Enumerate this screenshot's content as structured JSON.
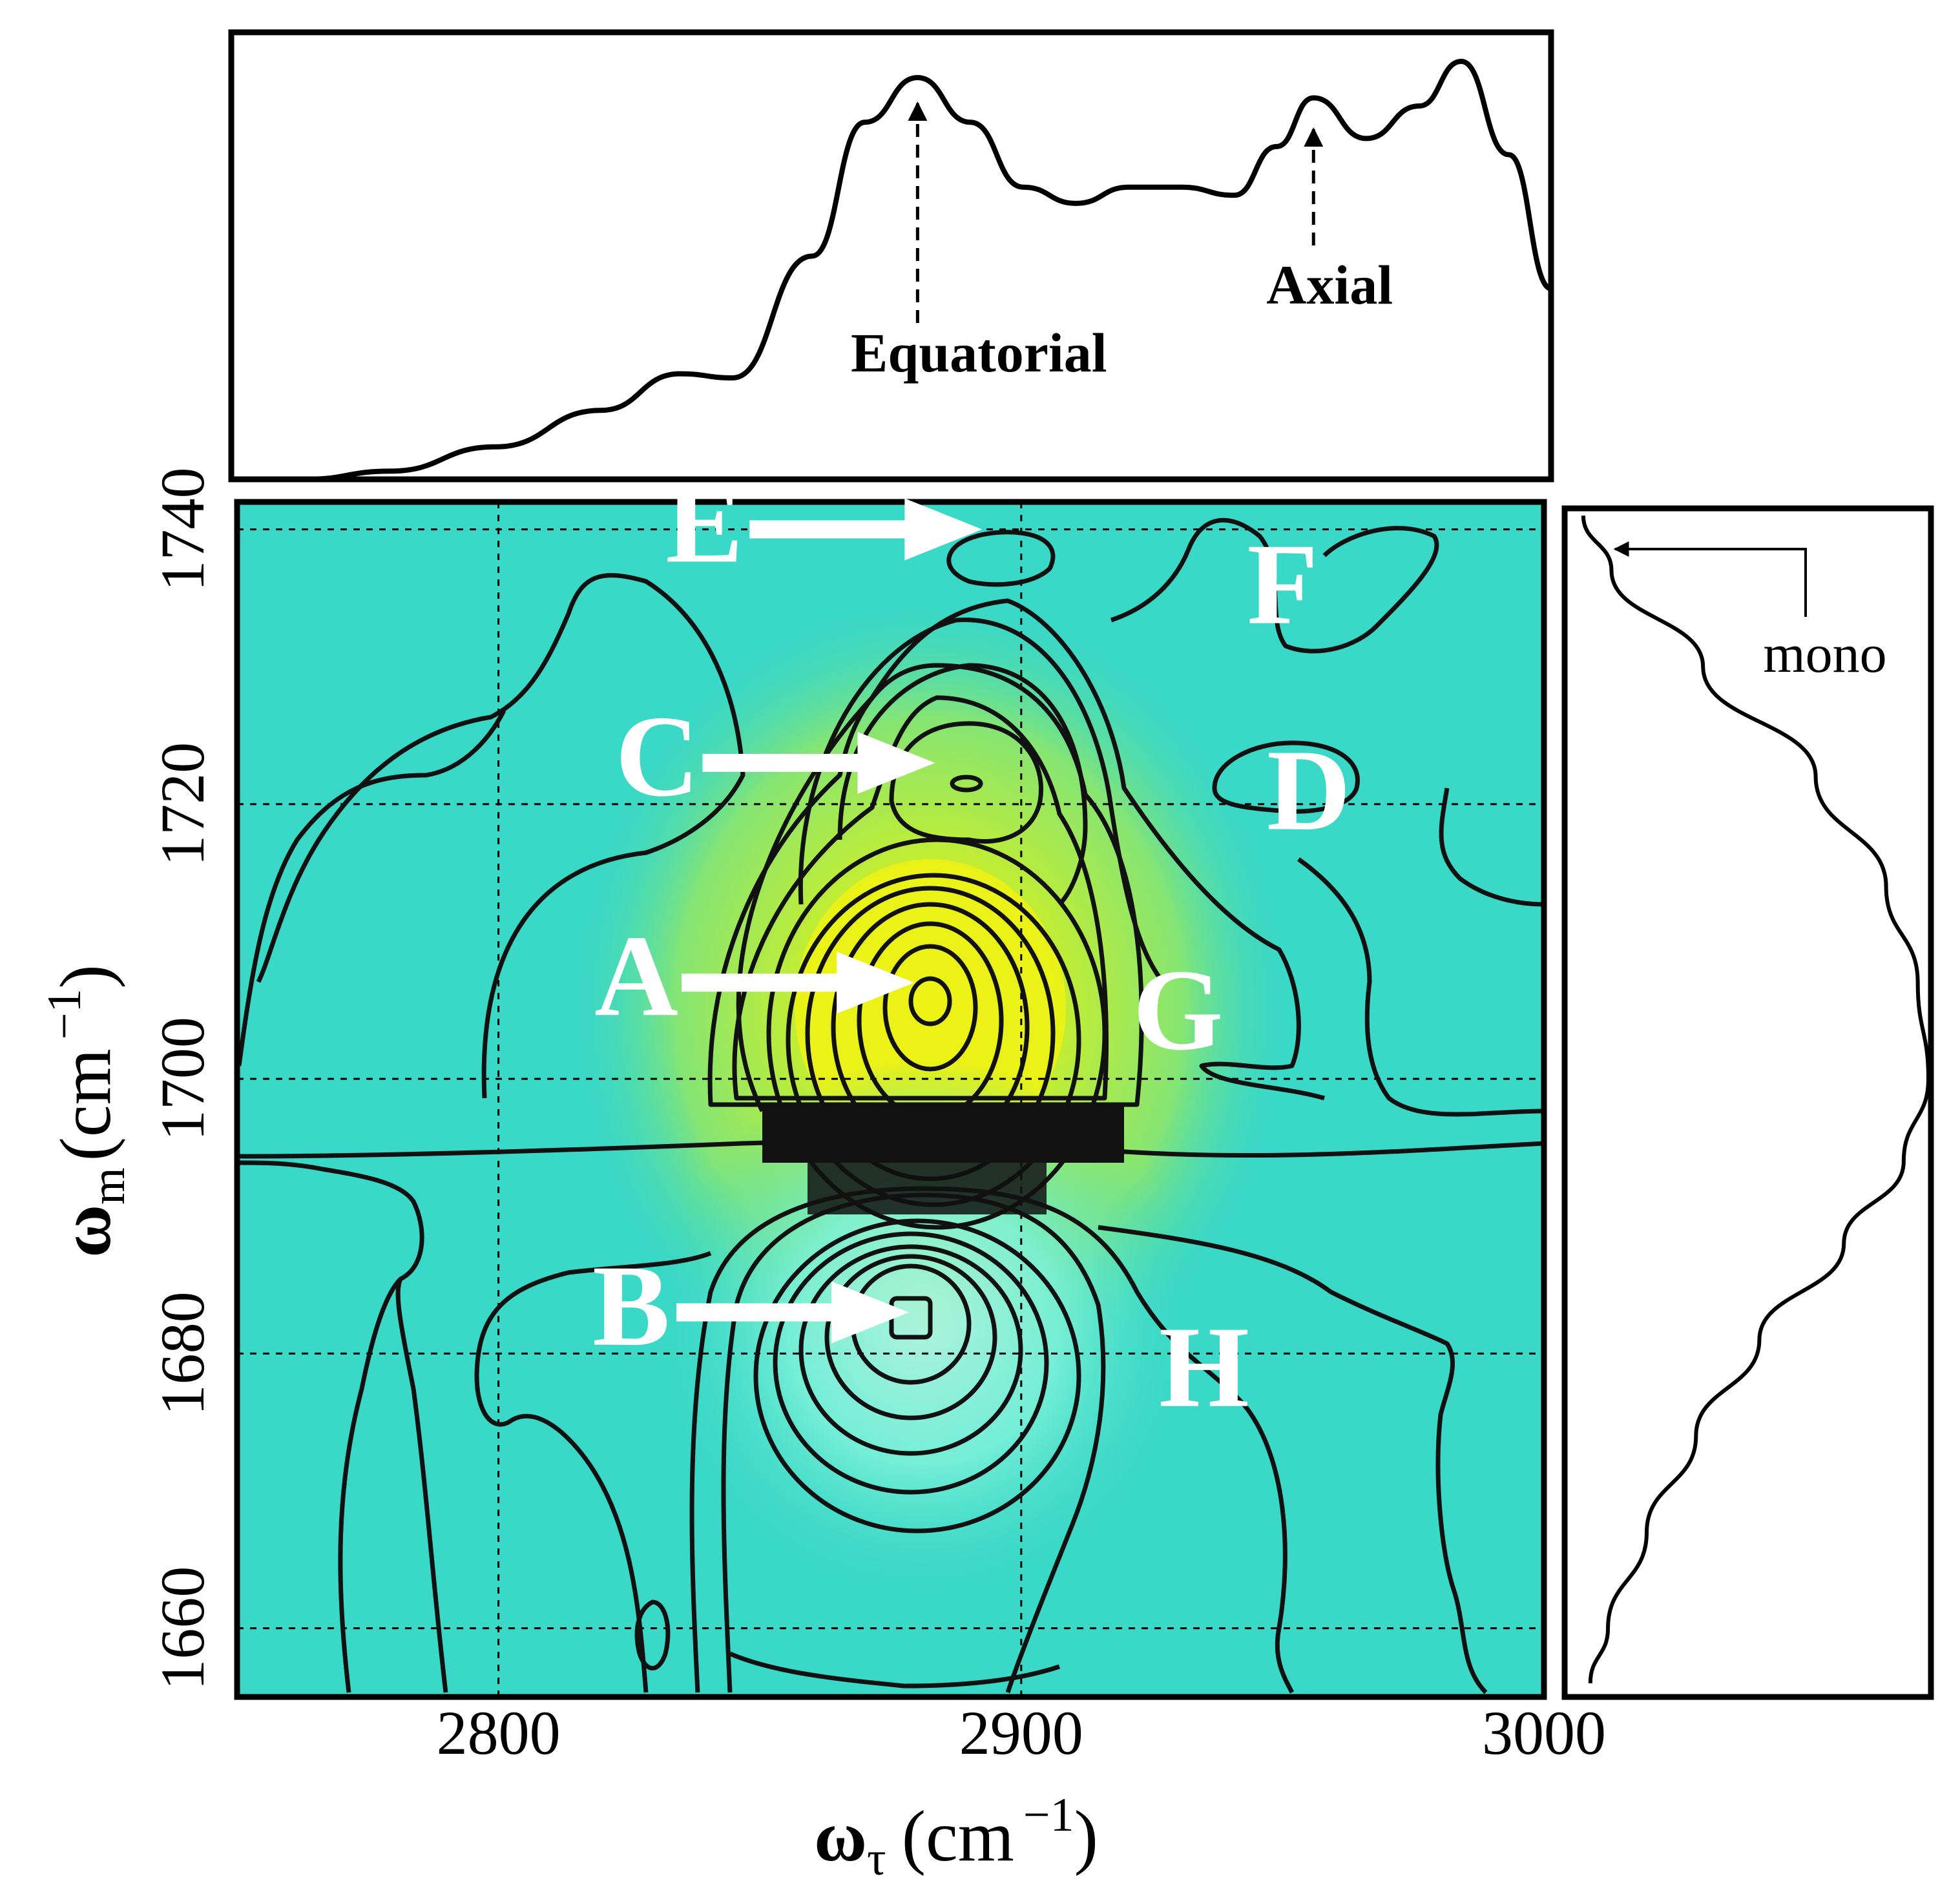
{
  "chart_data": [
    {
      "type": "line",
      "panel": "top-projection",
      "xlim": [
        2750,
        3000
      ],
      "x": [
        2764,
        2780,
        2800,
        2820,
        2835,
        2845,
        2860,
        2870,
        2880,
        2890,
        2900,
        2910,
        2920,
        2930,
        2940,
        2948,
        2955,
        2965,
        2975,
        2983,
        2992,
        3000
      ],
      "y": [
        0.0,
        0.02,
        0.08,
        0.17,
        0.26,
        0.25,
        0.55,
        0.88,
        0.99,
        0.88,
        0.72,
        0.68,
        0.72,
        0.72,
        0.7,
        0.82,
        0.94,
        0.84,
        0.92,
        1.03,
        0.8,
        0.47
      ],
      "annotations": [
        {
          "text": "Equatorial",
          "x": 2880
        },
        {
          "text": "Axial",
          "x": 2955
        }
      ]
    },
    {
      "type": "heatmap",
      "panel": "2D-spectrum",
      "xlabel_main": "ω",
      "xlabel_sub": "τ",
      "xlabel_unit": "(cm",
      "xlabel_exp": "−1",
      "xlabel_close": ")",
      "ylabel_main": "ω",
      "ylabel_sub": "m",
      "ylabel_unit": "(cm",
      "ylabel_exp": "−1",
      "ylabel_close": ")",
      "xlim": [
        2750,
        3000
      ],
      "ylim": [
        1655,
        1742
      ],
      "xticks": [
        "2800",
        "2900",
        "3000"
      ],
      "xtick_values": [
        2800,
        2900,
        3000
      ],
      "yticks": [
        "1660",
        "1680",
        "1700",
        "1720",
        "1740"
      ],
      "ytick_values": [
        1660,
        1680,
        1700,
        1720,
        1740
      ],
      "grid": true,
      "peaks": [
        {
          "label": "A",
          "x": 2882,
          "y": 1707
        },
        {
          "label": "B",
          "x": 2881,
          "y": 1683
        },
        {
          "label": "C",
          "x": 2886,
          "y": 1723
        },
        {
          "label": "D",
          "x": 2955,
          "y": 1721
        },
        {
          "label": "E",
          "x": 2895,
          "y": 1740
        },
        {
          "label": "F",
          "x": 2950,
          "y": 1736
        },
        {
          "label": "G",
          "x": 2930,
          "y": 1705
        },
        {
          "label": "H",
          "x": 2935,
          "y": 1679
        }
      ],
      "colors": {
        "background": "#3ad8c6",
        "positive_peak": "#f2f20a",
        "negative_peak": "#7af0d8",
        "contour": "#111111",
        "label": "#ffffff"
      }
    },
    {
      "type": "line",
      "panel": "right-projection",
      "ylim": [
        1655,
        1742
      ],
      "y": [
        1741,
        1737,
        1730,
        1722,
        1714,
        1707,
        1700,
        1694,
        1688,
        1681,
        1674,
        1667,
        1660,
        1656
      ],
      "x": [
        0.02,
        0.1,
        0.36,
        0.68,
        0.88,
        0.97,
        1.0,
        0.93,
        0.76,
        0.52,
        0.34,
        0.2,
        0.09,
        0.04
      ],
      "annotations": [
        {
          "text": "mono",
          "y": 1740
        }
      ]
    }
  ]
}
